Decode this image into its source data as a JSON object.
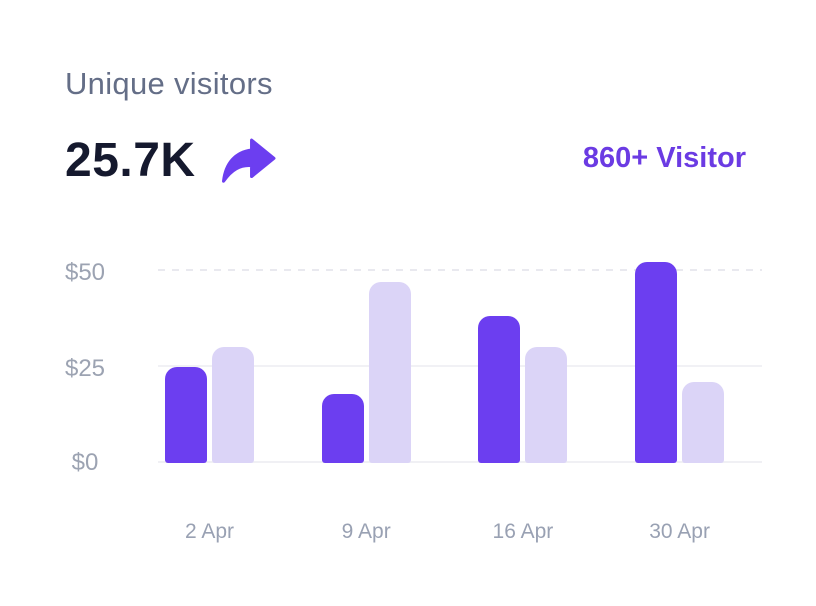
{
  "header": {
    "title": "Unique visitors",
    "metric_value": "25.7K",
    "trend_icon": "share-arrow-right-icon",
    "visitor_badge": "860+ Visitor"
  },
  "colors": {
    "accent_purple": "#6C3EF0",
    "accent_light_lavender": "#DBD4F7",
    "badge_text": "#6B3BE3",
    "title_text": "#646E87",
    "metric_text": "#15192E",
    "axis_text": "#9CA3B2"
  },
  "chart_data": {
    "type": "bar",
    "title": "Unique visitors",
    "categories": [
      "2 Apr",
      "9 Apr",
      "16 Apr",
      "30 Apr"
    ],
    "series": [
      {
        "name": "primary",
        "color": "#6C3EF0",
        "values": [
          25,
          18,
          38,
          52
        ]
      },
      {
        "name": "secondary",
        "color": "#DBD4F7",
        "values": [
          30,
          47,
          30,
          21
        ]
      }
    ],
    "yticks": [
      "$50",
      "$25",
      "$0"
    ],
    "ylim": [
      0,
      55
    ],
    "xlabel": "",
    "ylabel": "",
    "grid": "horizontal-light",
    "gridline_50_style": "dashed",
    "legend": "none"
  }
}
